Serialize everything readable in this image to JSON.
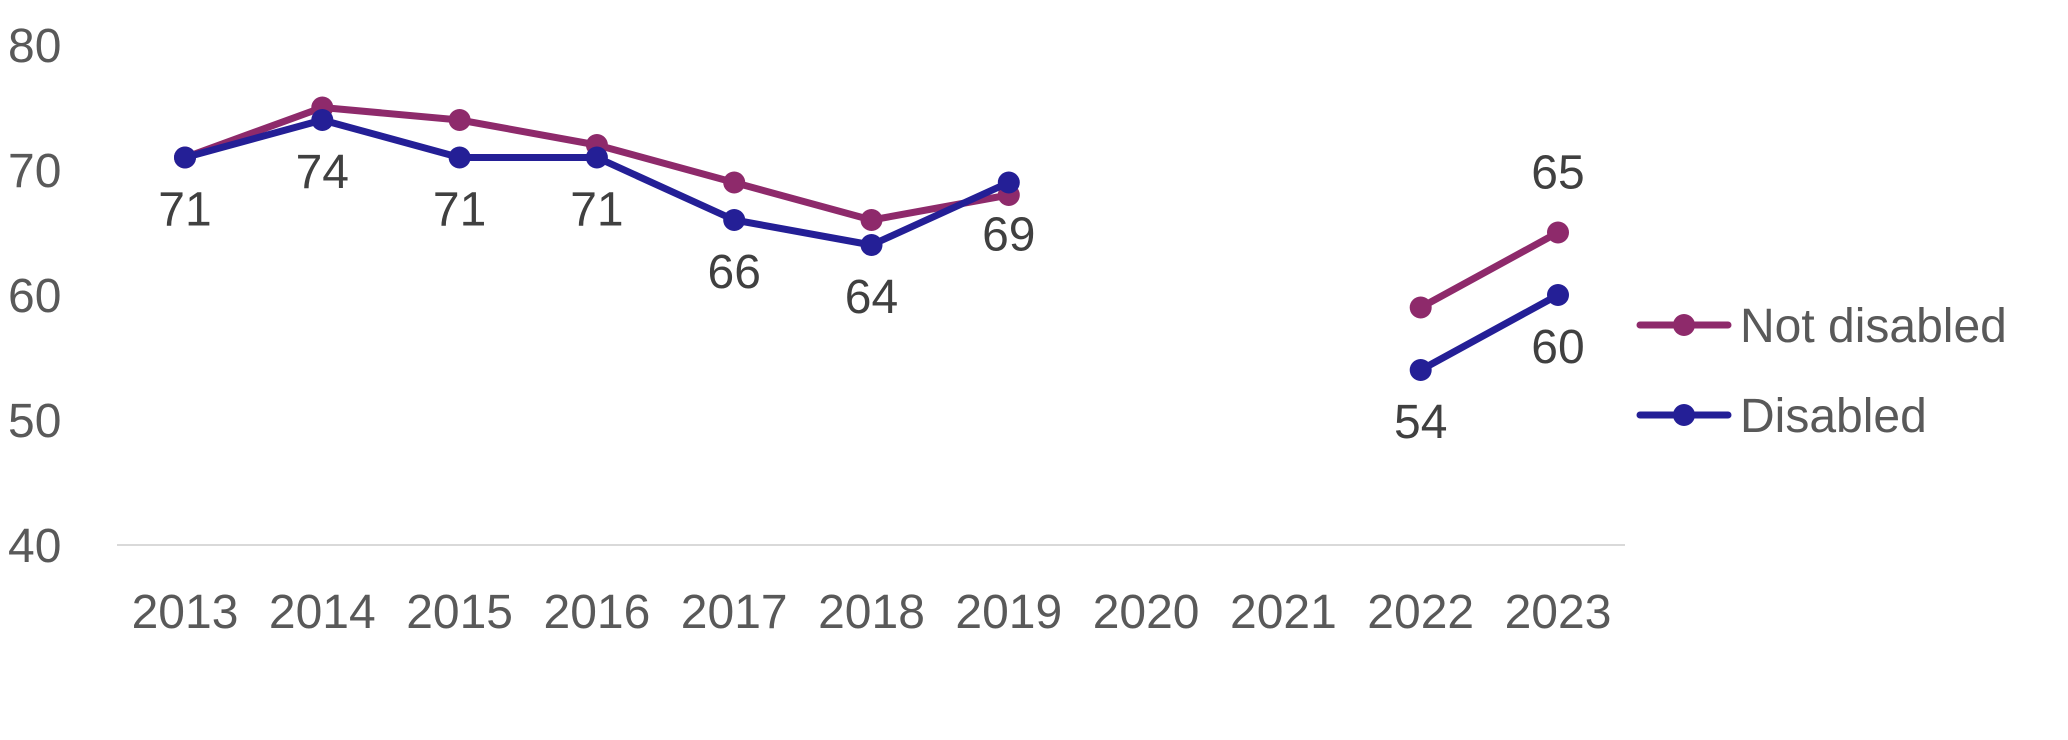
{
  "chart_data": {
    "type": "line",
    "title": "",
    "xlabel": "",
    "ylabel": "",
    "x": [
      "2013",
      "2014",
      "2015",
      "2016",
      "2017",
      "2018",
      "2019",
      "2020",
      "2021",
      "2022",
      "2023"
    ],
    "ylim": [
      40,
      80
    ],
    "yticks": [
      "40",
      "50",
      "60",
      "70",
      "80"
    ],
    "grid": false,
    "legend_position": "right",
    "series": [
      {
        "name": "Not disabled",
        "color": "#8E2A6B",
        "values": [
          71,
          75,
          74,
          72,
          69,
          66,
          68,
          null,
          null,
          59,
          65
        ],
        "data_labels": [
          null,
          null,
          null,
          null,
          null,
          null,
          null,
          null,
          null,
          null,
          "65"
        ]
      },
      {
        "name": "Disabled",
        "color": "#241F96",
        "values": [
          71,
          74,
          71,
          71,
          66,
          64,
          69,
          null,
          null,
          54,
          60
        ],
        "data_labels": [
          "71",
          "74",
          "71",
          "71",
          "66",
          "64",
          "69",
          null,
          null,
          "54",
          "60"
        ]
      }
    ]
  }
}
